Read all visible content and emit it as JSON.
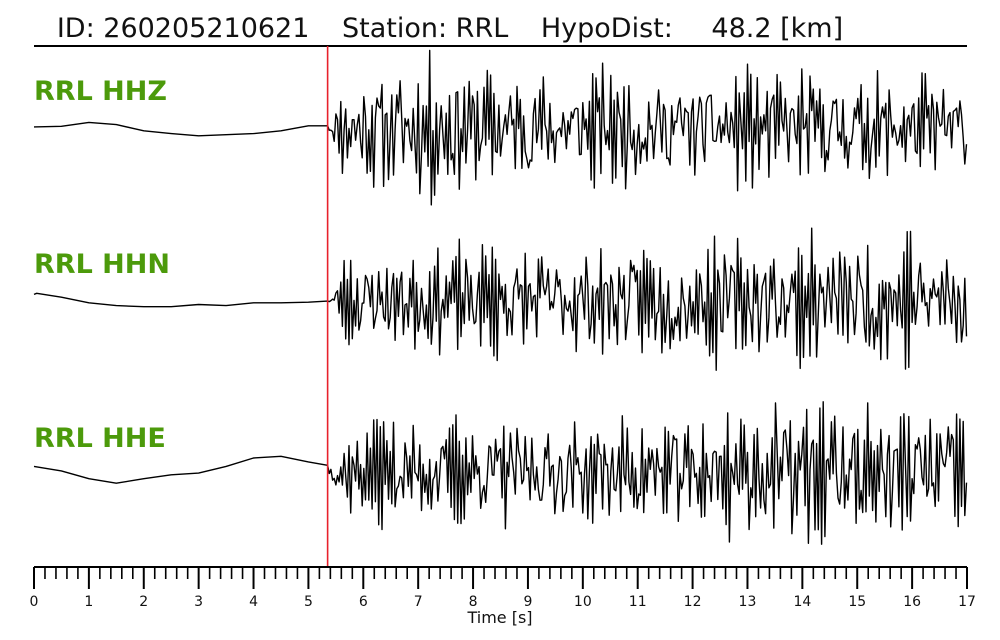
{
  "header": {
    "id_text": "ID: 260205210621",
    "station_text": "Station: RRL",
    "hypodist_label": "HypoDist:",
    "hypodist_value": "48.2 [km]"
  },
  "colors": {
    "trace": "#000000",
    "pick_line": "#e8212b",
    "channel_label": "#4c9a0b",
    "axis": "#000000"
  },
  "chart_data": {
    "type": "line",
    "title": "ID: 260205210621   Station: RRL   HypoDist:    48.2 [km]",
    "xlabel": "Time [s]",
    "ylabel": "",
    "xlim": [
      0,
      17
    ],
    "x_ticks": [
      0,
      1,
      2,
      3,
      4,
      5,
      6,
      7,
      8,
      9,
      10,
      11,
      12,
      13,
      14,
      15,
      16,
      17
    ],
    "minor_tick_step": 0.2,
    "pick_time": 5.35,
    "grid": false,
    "series": [
      {
        "name": "RRL HHZ",
        "pre_pick": [
          [
            0,
            0.02
          ],
          [
            0.5,
            0.03
          ],
          [
            1.0,
            0.1
          ],
          [
            1.5,
            0.06
          ],
          [
            2.0,
            -0.05
          ],
          [
            2.5,
            -0.1
          ],
          [
            3.0,
            -0.14
          ],
          [
            3.5,
            -0.12
          ],
          [
            4.0,
            -0.1
          ],
          [
            4.5,
            -0.05
          ],
          [
            5.0,
            0.04
          ],
          [
            5.35,
            0.04
          ]
        ],
        "coda": {
          "amp": 1.0,
          "amp_end": 0.85,
          "peak_time": 7.3,
          "peak_amp": 1.25,
          "seed": 11,
          "step": 0.03
        }
      },
      {
        "name": "RRL HHN",
        "pre_pick": [
          [
            0,
            0.1
          ],
          [
            0.05,
            0.12
          ],
          [
            0.5,
            0.05
          ],
          [
            1.0,
            -0.05
          ],
          [
            1.5,
            -0.1
          ],
          [
            2.0,
            -0.12
          ],
          [
            2.5,
            -0.12
          ],
          [
            3.0,
            -0.08
          ],
          [
            3.5,
            -0.1
          ],
          [
            4.0,
            -0.05
          ],
          [
            4.5,
            -0.05
          ],
          [
            5.0,
            -0.04
          ],
          [
            5.35,
            -0.02
          ]
        ],
        "coda": {
          "amp": 0.75,
          "amp_end": 1.05,
          "peak_time": 15.5,
          "peak_amp": 1.1,
          "seed": 23,
          "step": 0.03
        }
      },
      {
        "name": "RRL HHE",
        "pre_pick": [
          [
            0,
            0.1
          ],
          [
            0.5,
            0.02
          ],
          [
            1.0,
            -0.12
          ],
          [
            1.5,
            -0.2
          ],
          [
            2.0,
            -0.12
          ],
          [
            2.5,
            -0.05
          ],
          [
            3.0,
            -0.02
          ],
          [
            3.5,
            0.1
          ],
          [
            4.0,
            0.25
          ],
          [
            4.5,
            0.28
          ],
          [
            5.0,
            0.18
          ],
          [
            5.35,
            0.12
          ]
        ],
        "coda": {
          "amp": 0.7,
          "amp_end": 1.1,
          "peak_time": 13.8,
          "peak_amp": 1.2,
          "seed": 37,
          "step": 0.03
        }
      }
    ]
  }
}
